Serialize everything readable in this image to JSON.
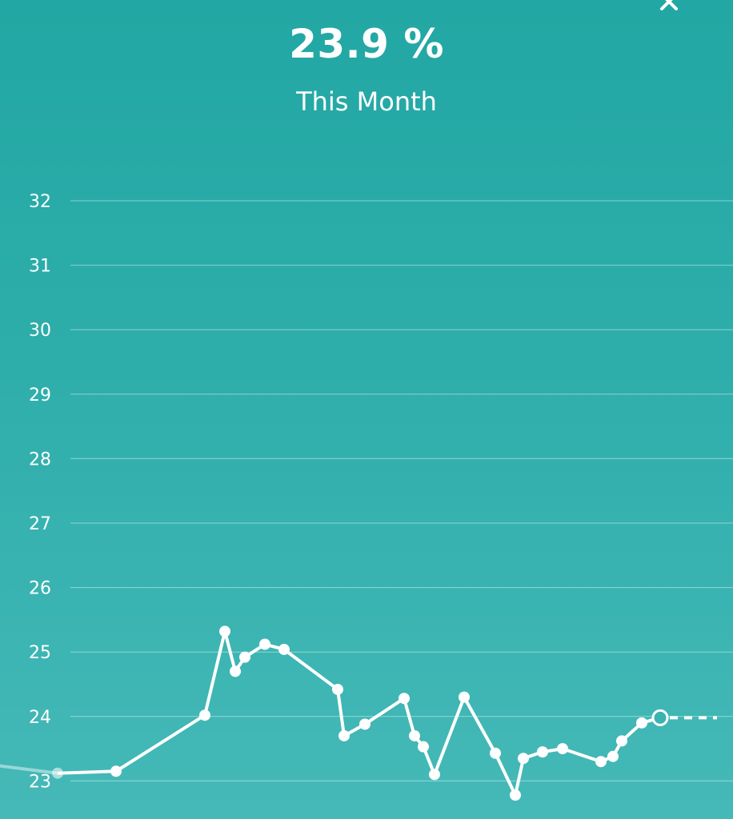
{
  "header": {
    "value": "23.9 %",
    "period": "This Month"
  },
  "chart_data": {
    "type": "line",
    "ylim": [
      22.5,
      32.5
    ],
    "yticks": [
      "32",
      "31",
      "30",
      "29",
      "28",
      "27",
      "26",
      "25",
      "24",
      "23"
    ],
    "grid": true,
    "previous_point": 23.1,
    "points": [
      23.12,
      23.15,
      24.02,
      25.32,
      24.7,
      24.92,
      25.12,
      25.04,
      24.42,
      23.7,
      23.88,
      24.28,
      23.7,
      23.53,
      23.1,
      24.3,
      23.43,
      22.78,
      23.35,
      23.45,
      23.5,
      23.3,
      23.38,
      23.62,
      23.9,
      23.98
    ],
    "last_point_open": true,
    "projection": true
  },
  "colors": {
    "background_top": "#22a7a4",
    "background_bottom": "#45b9b8",
    "line": "#ffffff"
  }
}
